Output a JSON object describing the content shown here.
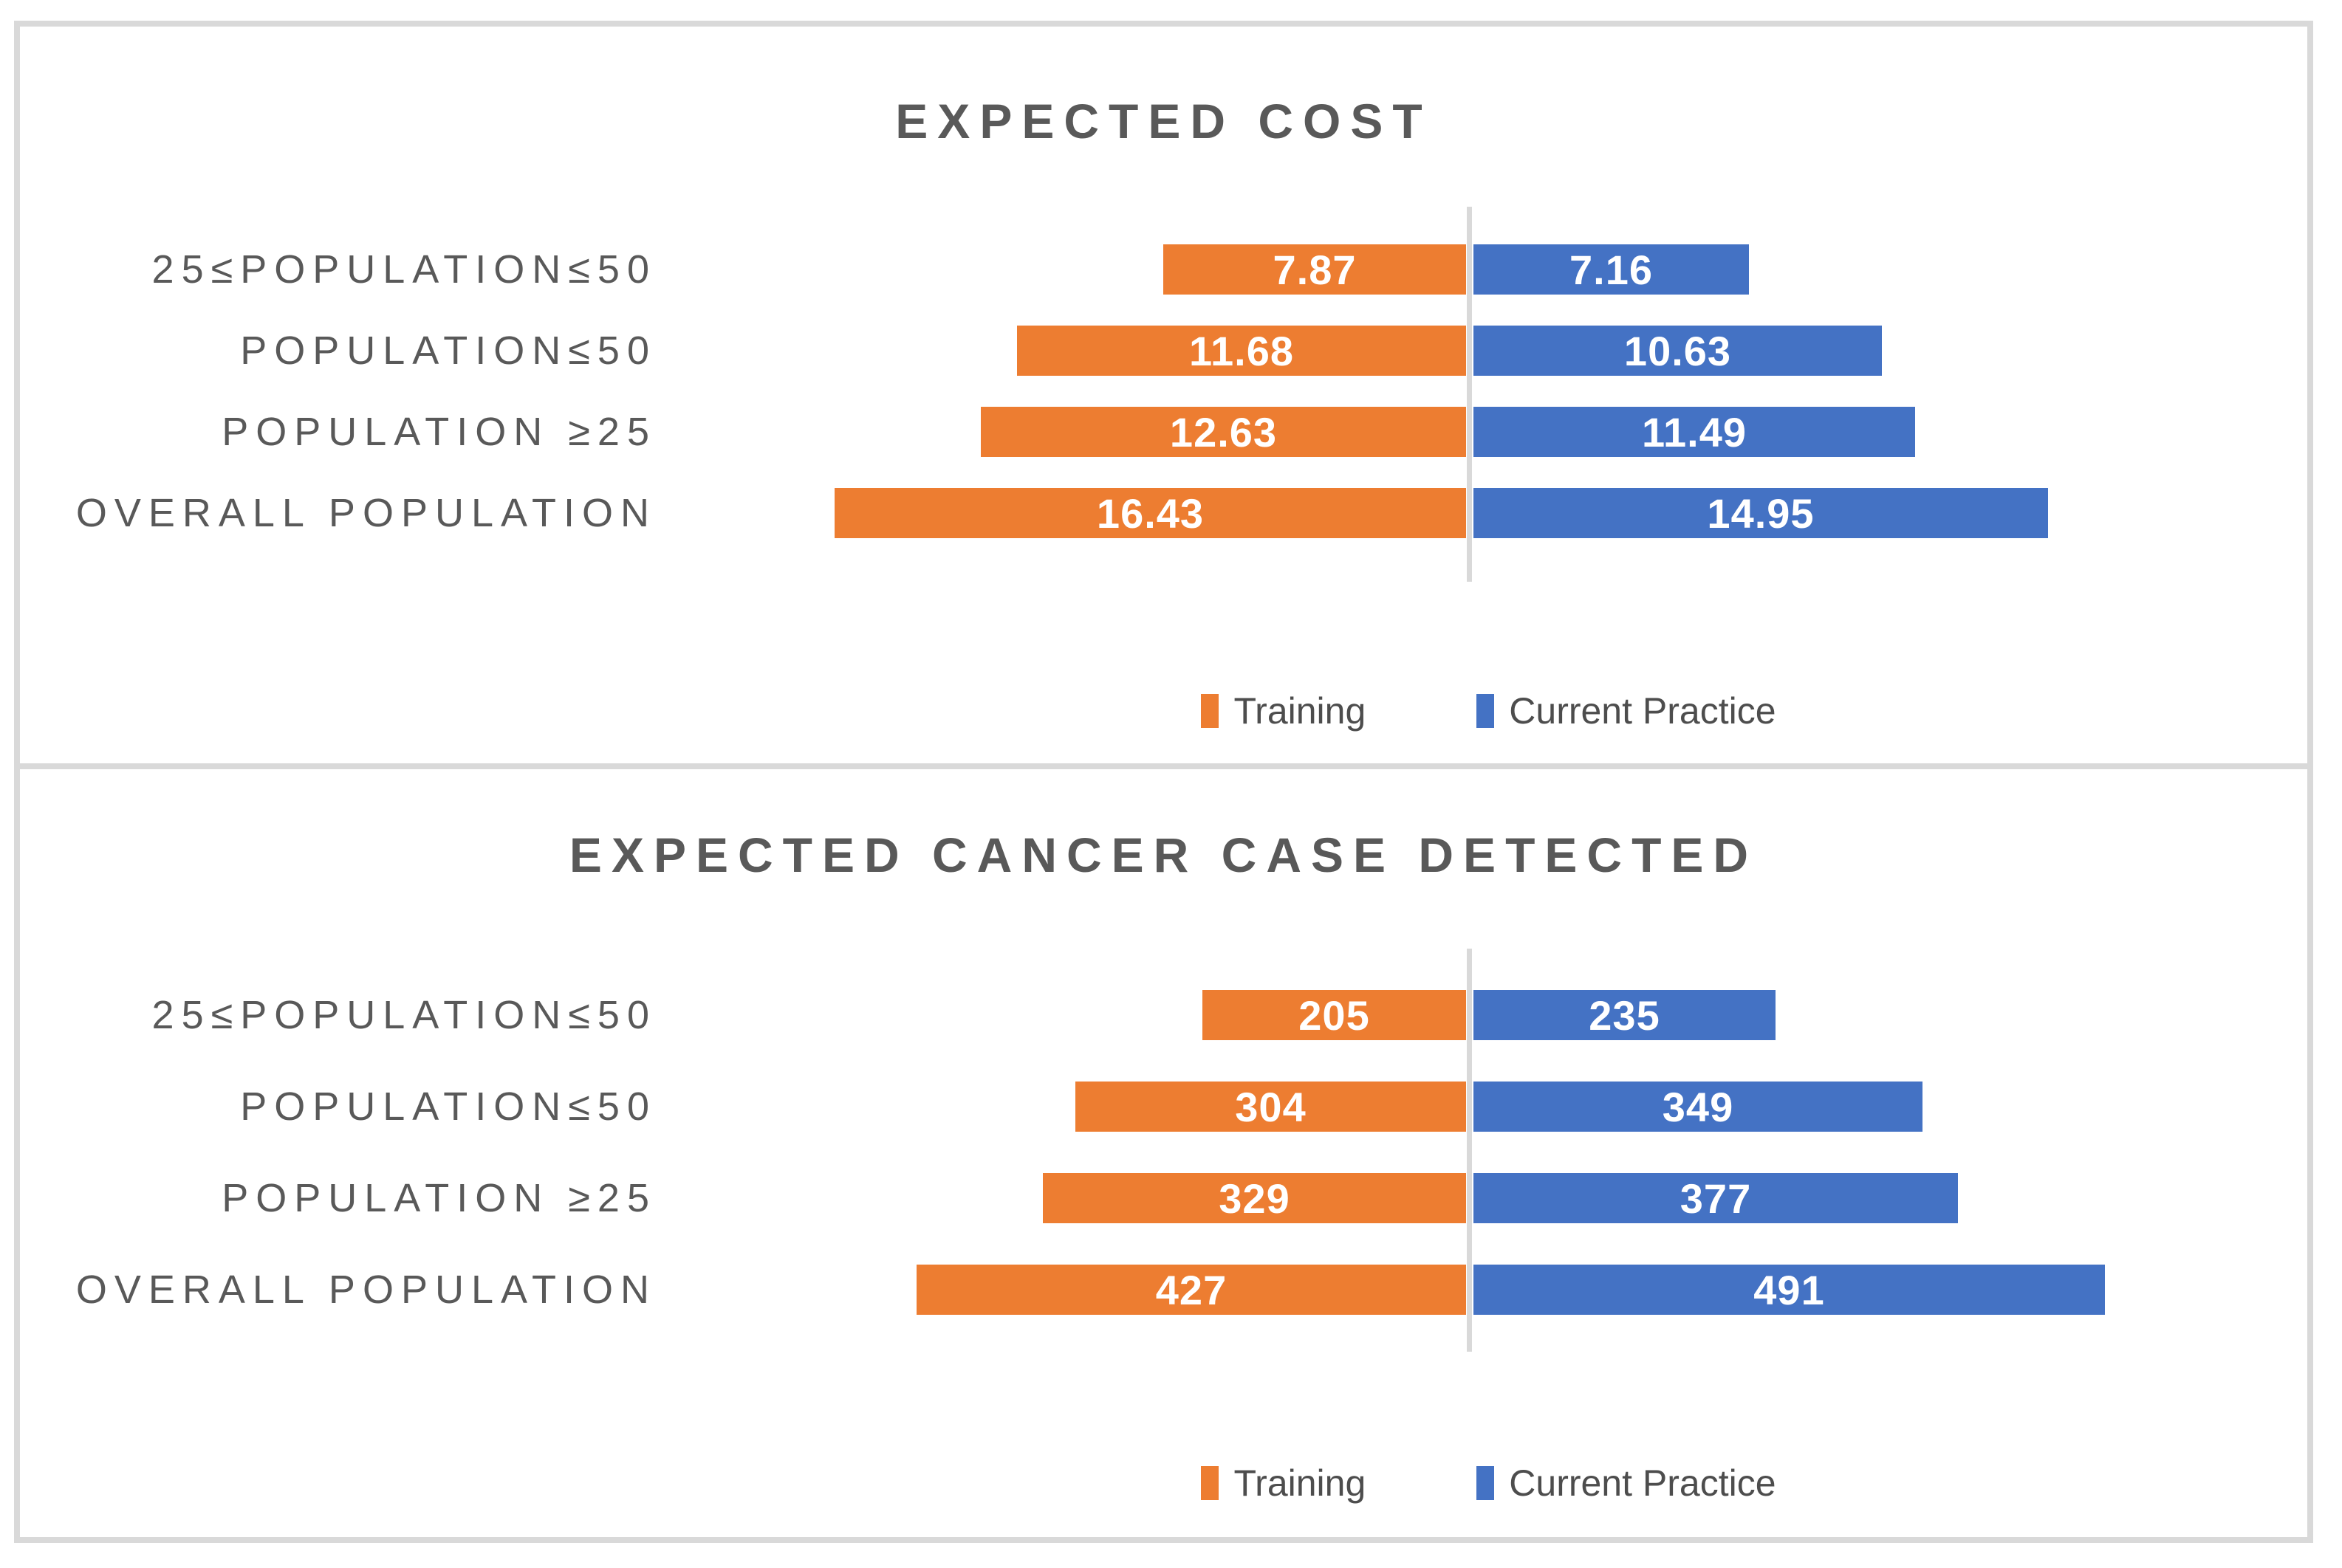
{
  "colors": {
    "training": "#ED7D31",
    "current_practice": "#4472C4",
    "title_text": "#595959",
    "category_text": "#595959",
    "legend_text": "#4D4D4D",
    "value_label_text": "#FFFFFF",
    "center_axis_line": "#D9D9D9",
    "panel_border": "#D9D9D9",
    "background": "#FFFFFF"
  },
  "chart_data": [
    {
      "type": "bar",
      "orientation": "diverging-horizontal",
      "title": "EXPECTED COST",
      "categories": [
        "25≤POPULATION≤50",
        "POPULATION≤50",
        "POPULATION ≥25",
        "OVERALL POPULATION"
      ],
      "series": [
        {
          "name": "Training",
          "side": "left",
          "color": "#ED7D31",
          "values": [
            7.87,
            11.68,
            12.63,
            16.43
          ]
        },
        {
          "name": "Current Practice",
          "side": "right",
          "color": "#4472C4",
          "values": [
            7.16,
            10.63,
            11.49,
            14.95
          ]
        }
      ],
      "value_labels": "inside-center",
      "axis": {
        "center_line": true,
        "gridlines": false,
        "tick_labels": false
      },
      "legend": {
        "position": "bottom-center",
        "items": [
          {
            "label": "Training",
            "color": "#ED7D31"
          },
          {
            "label": "Current Practice",
            "color": "#4472C4"
          }
        ]
      }
    },
    {
      "type": "bar",
      "orientation": "diverging-horizontal",
      "title": "EXPECTED CANCER CASE DETECTED",
      "categories": [
        "25≤POPULATION≤50",
        "POPULATION≤50",
        "POPULATION ≥25",
        "OVERALL POPULATION"
      ],
      "series": [
        {
          "name": "Training",
          "side": "left",
          "color": "#ED7D31",
          "values": [
            205,
            304,
            329,
            427
          ]
        },
        {
          "name": "Current Practice",
          "side": "right",
          "color": "#4472C4",
          "values": [
            235,
            349,
            377,
            491
          ]
        }
      ],
      "value_labels": "inside-center",
      "axis": {
        "center_line": true,
        "gridlines": false,
        "tick_labels": false
      },
      "legend": {
        "position": "bottom-center",
        "items": [
          {
            "label": "Training",
            "color": "#ED7D31"
          },
          {
            "label": "Current Practice",
            "color": "#4472C4"
          }
        ]
      }
    }
  ]
}
